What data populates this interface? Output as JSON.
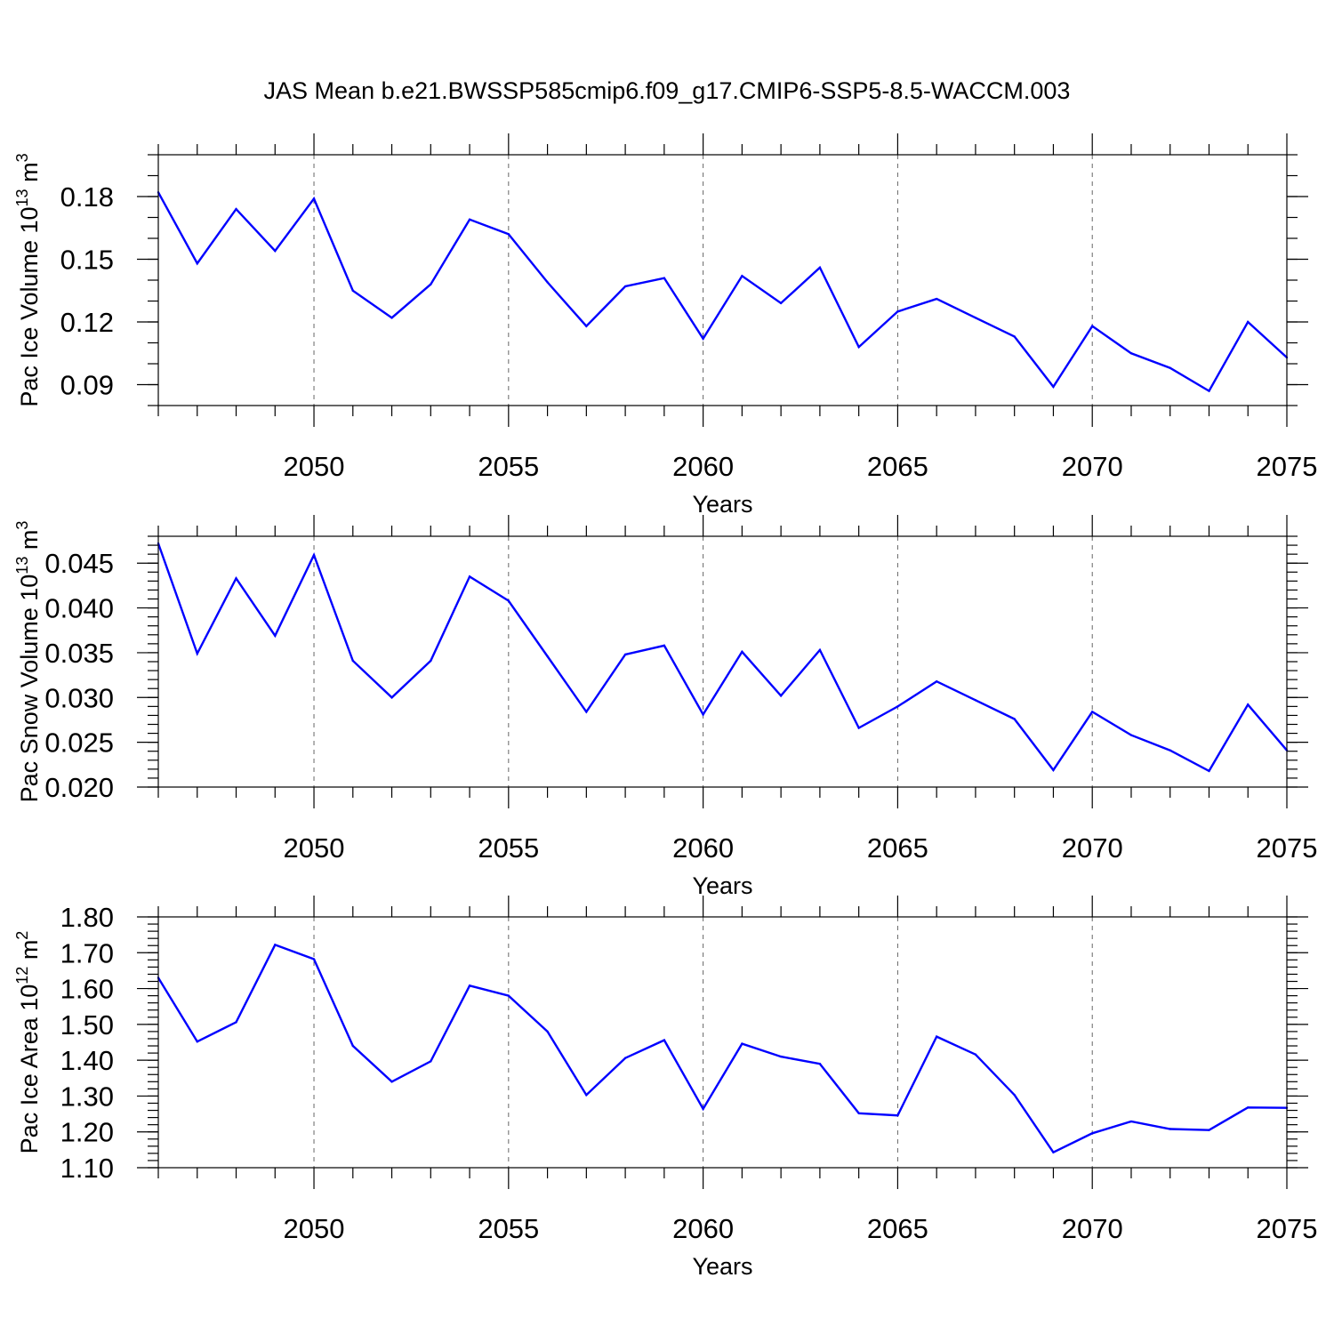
{
  "title": "JAS Mean b.e21.BWSSP585cmip6.f09_g17.CMIP6-SSP5-8.5-WACCM.003",
  "line_color": "#0000ff",
  "chart_data": [
    {
      "type": "line",
      "ylabel_main": "Pac Ice Volume 10",
      "ylabel_exp": "13",
      "ylabel_unit": " m",
      "ylabel_unit_exp": "3",
      "xlabel": "Years",
      "xlim": [
        2046,
        2075
      ],
      "ylim": [
        0.08,
        0.2
      ],
      "yticks": [
        0.09,
        0.12,
        0.15,
        0.18
      ],
      "ytick_labels": [
        "0.09",
        "0.12",
        "0.15",
        "0.18"
      ],
      "y_minor_step": 0.01,
      "xticks": [
        2050,
        2055,
        2060,
        2065,
        2070,
        2075
      ],
      "xtick_labels": [
        "2050",
        "2055",
        "2060",
        "2065",
        "2070",
        "2075"
      ],
      "grid": "dashed vertical at major x ticks",
      "x": [
        2046,
        2047,
        2048,
        2049,
        2050,
        2051,
        2052,
        2053,
        2054,
        2055,
        2056,
        2057,
        2058,
        2059,
        2060,
        2061,
        2062,
        2063,
        2064,
        2065,
        2066,
        2067,
        2068,
        2069,
        2070,
        2071,
        2072,
        2073,
        2074,
        2075
      ],
      "values": [
        0.182,
        0.148,
        0.174,
        0.154,
        0.179,
        0.135,
        0.122,
        0.138,
        0.169,
        0.162,
        0.139,
        0.118,
        0.137,
        0.141,
        0.112,
        0.142,
        0.129,
        0.146,
        0.108,
        0.125,
        0.131,
        0.122,
        0.113,
        0.089,
        0.118,
        0.105,
        0.098,
        0.087,
        0.12,
        0.103
      ]
    },
    {
      "type": "line",
      "ylabel_main": "Pac Snow Volume 10",
      "ylabel_exp": "13",
      "ylabel_unit": " m",
      "ylabel_unit_exp": "3",
      "xlabel": "Years",
      "xlim": [
        2046,
        2075
      ],
      "ylim": [
        0.02,
        0.048
      ],
      "yticks": [
        0.02,
        0.025,
        0.03,
        0.035,
        0.04,
        0.045
      ],
      "ytick_labels": [
        "0.020",
        "0.025",
        "0.030",
        "0.035",
        "0.040",
        "0.045"
      ],
      "y_minor_step": 0.001,
      "xticks": [
        2050,
        2055,
        2060,
        2065,
        2070,
        2075
      ],
      "xtick_labels": [
        "2050",
        "2055",
        "2060",
        "2065",
        "2070",
        "2075"
      ],
      "grid": "dashed vertical at major x ticks",
      "x": [
        2046,
        2047,
        2048,
        2049,
        2050,
        2051,
        2052,
        2053,
        2054,
        2055,
        2056,
        2057,
        2058,
        2059,
        2060,
        2061,
        2062,
        2063,
        2064,
        2065,
        2066,
        2067,
        2068,
        2069,
        2070,
        2071,
        2072,
        2073,
        2074,
        2075
      ],
      "values": [
        0.0472,
        0.0349,
        0.0433,
        0.0369,
        0.0459,
        0.0341,
        0.03,
        0.0341,
        0.0435,
        0.0408,
        0.0346,
        0.0284,
        0.0348,
        0.0358,
        0.0281,
        0.0351,
        0.0302,
        0.0353,
        0.0266,
        0.029,
        0.0318,
        0.0297,
        0.0276,
        0.0219,
        0.0284,
        0.0258,
        0.0241,
        0.0218,
        0.0292,
        0.0241
      ]
    },
    {
      "type": "line",
      "ylabel_main": "Pac Ice Area 10",
      "ylabel_exp": "12",
      "ylabel_unit": " m",
      "ylabel_unit_exp": "2",
      "xlabel": "Years",
      "xlim": [
        2046,
        2075
      ],
      "ylim": [
        1.1,
        1.8
      ],
      "yticks": [
        1.1,
        1.2,
        1.3,
        1.4,
        1.5,
        1.6,
        1.7,
        1.8
      ],
      "ytick_labels": [
        "1.10",
        "1.20",
        "1.30",
        "1.40",
        "1.50",
        "1.60",
        "1.70",
        "1.80"
      ],
      "y_minor_step": 0.02,
      "xticks": [
        2050,
        2055,
        2060,
        2065,
        2070,
        2075
      ],
      "xtick_labels": [
        "2050",
        "2055",
        "2060",
        "2065",
        "2070",
        "2075"
      ],
      "grid": "dashed vertical at major x ticks",
      "x": [
        2046,
        2047,
        2048,
        2049,
        2050,
        2051,
        2052,
        2053,
        2054,
        2055,
        2056,
        2057,
        2058,
        2059,
        2060,
        2061,
        2062,
        2063,
        2064,
        2065,
        2066,
        2067,
        2068,
        2069,
        2070,
        2071,
        2072,
        2073,
        2074,
        2075
      ],
      "values": [
        1.63,
        1.452,
        1.506,
        1.722,
        1.682,
        1.44,
        1.34,
        1.397,
        1.608,
        1.58,
        1.48,
        1.303,
        1.406,
        1.456,
        1.264,
        1.446,
        1.41,
        1.39,
        1.252,
        1.246,
        1.466,
        1.416,
        1.303,
        1.143,
        1.196,
        1.229,
        1.208,
        1.205,
        1.268,
        1.267
      ]
    }
  ]
}
